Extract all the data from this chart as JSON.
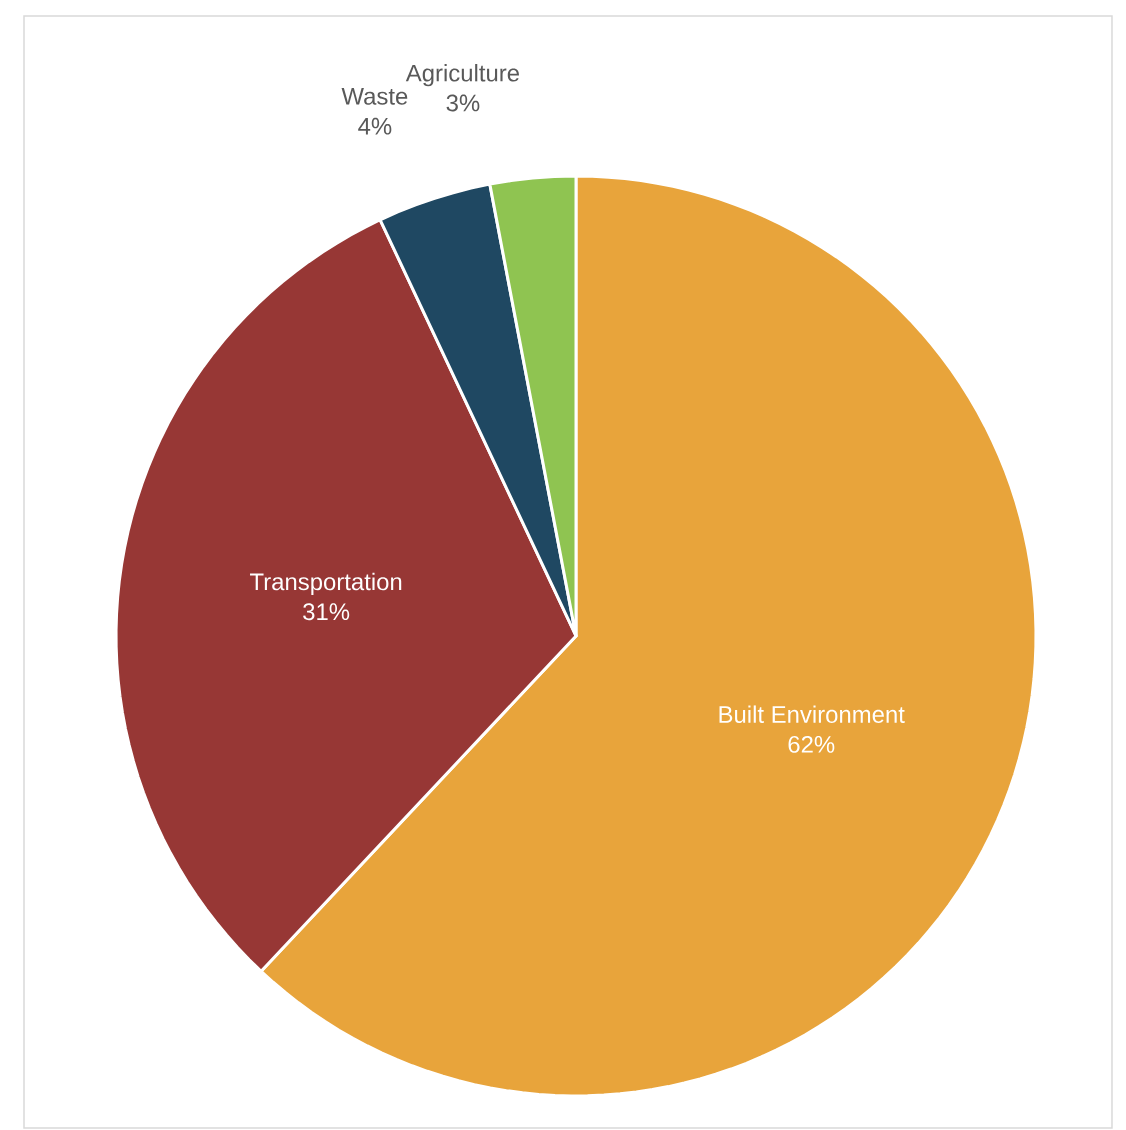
{
  "chart_data": {
    "type": "pie",
    "categories": [
      "Built Environment",
      "Transportation",
      "Waste",
      "Agriculture"
    ],
    "values": [
      62,
      31,
      4,
      3
    ],
    "colors": [
      "#e8a43b",
      "#973735",
      "#1f4862",
      "#8fc451"
    ],
    "value_labels": [
      "62%",
      "31%",
      "4%",
      "3%"
    ]
  }
}
